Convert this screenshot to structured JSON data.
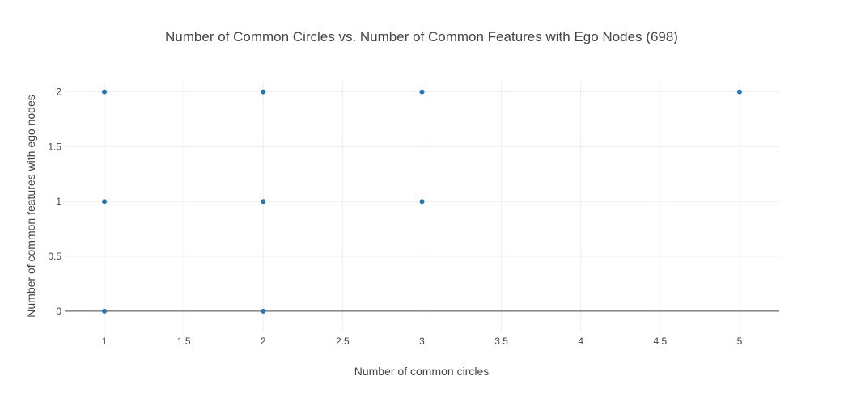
{
  "chart_data": {
    "type": "scatter",
    "title": "Number of Common Circles vs. Number of Common Features with Ego Nodes (698)",
    "xlabel": "Number of common circles",
    "ylabel": "Number of common features with ego nodes",
    "xlim": [
      0.75,
      5.25
    ],
    "ylim": [
      -0.2,
      2.1
    ],
    "xticks": [
      1,
      1.5,
      2,
      2.5,
      3,
      3.5,
      4,
      4.5,
      5
    ],
    "yticks": [
      0,
      0.5,
      1,
      1.5,
      2
    ],
    "xtick_labels": [
      "1",
      "1.5",
      "2",
      "2.5",
      "3",
      "3.5",
      "4",
      "4.5",
      "5"
    ],
    "ytick_labels": [
      "0",
      "0.5",
      "1",
      "1.5",
      "2"
    ],
    "grid": true,
    "legend": "none",
    "marker_color": "#1f77b4",
    "series": [
      {
        "x": [
          1,
          1,
          1,
          2,
          2,
          2,
          3,
          3,
          5
        ],
        "y": [
          2,
          1,
          0,
          2,
          1,
          0,
          2,
          1,
          2
        ]
      }
    ]
  }
}
